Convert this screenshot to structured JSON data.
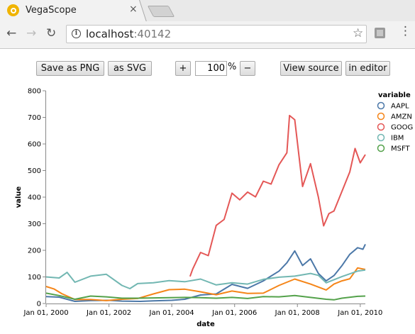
{
  "browser": {
    "tab_title": "VegaScope",
    "tab_close": "×",
    "url_host": "localhost",
    "url_port": ":40142",
    "back_glyph": "←",
    "forward_glyph": "→",
    "reload_glyph": "↻",
    "star_glyph": "☆",
    "info_glyph": "i",
    "menu_glyph": "⋮"
  },
  "controls": {
    "save_png": "Save as PNG",
    "save_svg": "as SVG",
    "zoom_in": "+",
    "zoom_value": "100",
    "zoom_unit": "%",
    "zoom_out": "−",
    "view_source": "View source",
    "in_editor": "in editor"
  },
  "chart_data": {
    "type": "line",
    "xlabel": "date",
    "ylabel": "value",
    "legend_title": "variable",
    "legend_position": "right",
    "grid": false,
    "y_range": [
      0,
      800
    ],
    "y_ticks": [
      0,
      100,
      200,
      300,
      400,
      500,
      600,
      700,
      800
    ],
    "x_range": [
      "2000-01-01",
      "2010-03-01"
    ],
    "x_ticks": [
      {
        "date": "2000-01-01",
        "label": "Jan 01, 2000"
      },
      {
        "date": "2002-01-01",
        "label": "Jan 01, 2002"
      },
      {
        "date": "2004-01-01",
        "label": "Jan 01, 2004"
      },
      {
        "date": "2006-01-01",
        "label": "Jan 01, 2006"
      },
      {
        "date": "2008-01-01",
        "label": "Jan 01, 2008"
      },
      {
        "date": "2010-01-01",
        "label": "Jan 01, 2010"
      }
    ],
    "series": [
      {
        "name": "AAPL",
        "color": "#4c78a8",
        "points": [
          [
            "2000-01-01",
            26
          ],
          [
            "2000-06-01",
            24
          ],
          [
            "2000-12-01",
            8
          ],
          [
            "2001-06-01",
            11
          ],
          [
            "2002-01-01",
            12
          ],
          [
            "2002-06-01",
            9
          ],
          [
            "2003-01-01",
            8
          ],
          [
            "2003-06-01",
            10
          ],
          [
            "2004-01-01",
            12
          ],
          [
            "2004-06-01",
            16
          ],
          [
            "2004-12-01",
            32
          ],
          [
            "2005-06-01",
            36
          ],
          [
            "2005-12-01",
            72
          ],
          [
            "2006-06-01",
            57
          ],
          [
            "2006-12-01",
            85
          ],
          [
            "2007-06-01",
            122
          ],
          [
            "2007-09-01",
            153
          ],
          [
            "2007-12-01",
            198
          ],
          [
            "2008-03-01",
            143
          ],
          [
            "2008-06-01",
            168
          ],
          [
            "2008-09-01",
            113
          ],
          [
            "2008-12-01",
            85
          ],
          [
            "2009-03-01",
            105
          ],
          [
            "2009-06-01",
            142
          ],
          [
            "2009-09-01",
            185
          ],
          [
            "2009-12-01",
            210
          ],
          [
            "2010-02-01",
            204
          ],
          [
            "2010-03-01",
            223
          ]
        ]
      },
      {
        "name": "AMZN",
        "color": "#f58518",
        "points": [
          [
            "2000-01-01",
            64
          ],
          [
            "2000-04-01",
            55
          ],
          [
            "2000-07-01",
            37
          ],
          [
            "2000-12-01",
            15
          ],
          [
            "2001-06-01",
            15
          ],
          [
            "2001-12-01",
            11
          ],
          [
            "2002-06-01",
            16
          ],
          [
            "2002-12-01",
            19
          ],
          [
            "2003-06-01",
            36
          ],
          [
            "2003-12-01",
            52
          ],
          [
            "2004-06-01",
            54
          ],
          [
            "2004-12-01",
            44
          ],
          [
            "2005-06-01",
            33
          ],
          [
            "2005-12-01",
            47
          ],
          [
            "2006-06-01",
            38
          ],
          [
            "2006-12-01",
            39
          ],
          [
            "2007-06-01",
            68
          ],
          [
            "2007-12-01",
            92
          ],
          [
            "2008-06-01",
            73
          ],
          [
            "2008-12-01",
            51
          ],
          [
            "2009-03-01",
            73
          ],
          [
            "2009-06-01",
            85
          ],
          [
            "2009-09-01",
            93
          ],
          [
            "2009-12-01",
            134
          ],
          [
            "2010-03-01",
            128
          ]
        ]
      },
      {
        "name": "GOOG",
        "color": "#e45756",
        "points": [
          [
            "2004-08-01",
            102
          ],
          [
            "2004-09-01",
            130
          ],
          [
            "2004-12-01",
            192
          ],
          [
            "2005-03-01",
            180
          ],
          [
            "2005-06-01",
            294
          ],
          [
            "2005-09-01",
            316
          ],
          [
            "2005-12-01",
            415
          ],
          [
            "2006-03-01",
            390
          ],
          [
            "2006-06-01",
            419
          ],
          [
            "2006-09-01",
            401
          ],
          [
            "2006-12-01",
            460
          ],
          [
            "2007-03-01",
            449
          ],
          [
            "2007-06-01",
            522
          ],
          [
            "2007-09-01",
            567
          ],
          [
            "2007-10-01",
            707
          ],
          [
            "2007-12-01",
            691
          ],
          [
            "2008-03-01",
            440
          ],
          [
            "2008-06-01",
            526
          ],
          [
            "2008-09-01",
            400
          ],
          [
            "2008-11-01",
            292
          ],
          [
            "2009-01-01",
            338
          ],
          [
            "2009-03-01",
            348
          ],
          [
            "2009-06-01",
            421
          ],
          [
            "2009-09-01",
            495
          ],
          [
            "2009-11-01",
            583
          ],
          [
            "2010-01-01",
            529
          ],
          [
            "2010-03-01",
            560
          ]
        ]
      },
      {
        "name": "IBM",
        "color": "#72b7b2",
        "points": [
          [
            "2000-01-01",
            100
          ],
          [
            "2000-06-01",
            96
          ],
          [
            "2000-09-01",
            117
          ],
          [
            "2000-12-01",
            80
          ],
          [
            "2001-06-01",
            103
          ],
          [
            "2001-12-01",
            110
          ],
          [
            "2002-06-01",
            68
          ],
          [
            "2002-09-01",
            56
          ],
          [
            "2002-12-01",
            75
          ],
          [
            "2003-06-01",
            78
          ],
          [
            "2003-12-01",
            86
          ],
          [
            "2004-06-01",
            82
          ],
          [
            "2004-12-01",
            92
          ],
          [
            "2005-06-01",
            70
          ],
          [
            "2005-12-01",
            78
          ],
          [
            "2006-06-01",
            73
          ],
          [
            "2006-12-01",
            91
          ],
          [
            "2007-06-01",
            99
          ],
          [
            "2007-12-01",
            103
          ],
          [
            "2008-06-01",
            113
          ],
          [
            "2008-09-01",
            106
          ],
          [
            "2008-12-01",
            78
          ],
          [
            "2009-06-01",
            101
          ],
          [
            "2009-12-01",
            122
          ],
          [
            "2010-03-01",
            126
          ]
        ]
      },
      {
        "name": "MSFT",
        "color": "#54a24b",
        "points": [
          [
            "2000-01-01",
            39
          ],
          [
            "2000-06-01",
            30
          ],
          [
            "2000-12-01",
            16
          ],
          [
            "2001-06-01",
            28
          ],
          [
            "2001-12-01",
            25
          ],
          [
            "2002-06-01",
            20
          ],
          [
            "2002-12-01",
            20
          ],
          [
            "2003-06-01",
            21
          ],
          [
            "2003-12-01",
            22
          ],
          [
            "2004-06-01",
            23
          ],
          [
            "2004-12-01",
            22
          ],
          [
            "2005-06-01",
            20
          ],
          [
            "2005-12-01",
            23
          ],
          [
            "2006-06-01",
            19
          ],
          [
            "2006-12-01",
            26
          ],
          [
            "2007-06-01",
            25
          ],
          [
            "2007-12-01",
            30
          ],
          [
            "2008-06-01",
            23
          ],
          [
            "2008-12-01",
            16
          ],
          [
            "2009-03-01",
            14
          ],
          [
            "2009-06-01",
            20
          ],
          [
            "2009-12-01",
            27
          ],
          [
            "2010-03-01",
            28
          ]
        ]
      }
    ]
  }
}
